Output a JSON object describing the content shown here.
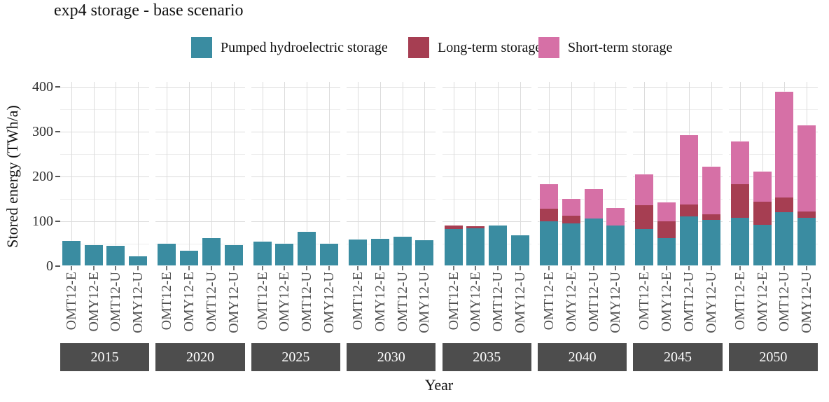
{
  "title": "exp4 storage - base scenario",
  "y_axis": {
    "label": "Stored energy (TWh/a)"
  },
  "x_axis": {
    "label": "Year"
  },
  "legend": {
    "items": [
      {
        "label": "Pumped hydroelectric storage",
        "color": "#3A8CA1"
      },
      {
        "label": "Long-term storage",
        "color": "#A63E52"
      },
      {
        "label": "Short-term storage",
        "color": "#D670A6"
      }
    ]
  },
  "chart_data": {
    "type": "bar",
    "stacked": true,
    "title": "exp4 storage - base scenario",
    "xlabel": "Year",
    "ylabel": "Stored energy (TWh/a)",
    "ylim": [
      0,
      400
    ],
    "yticks": [
      0,
      100,
      200,
      300,
      400
    ],
    "yminor": [
      50,
      150,
      250,
      350
    ],
    "grid": true,
    "legend_position": "top",
    "categories": [
      "OMT12-E",
      "OMY12-E",
      "OMT12-U",
      "OMY12-U"
    ],
    "series_bottom_to_top": [
      "Pumped hydroelectric storage",
      "Long-term storage",
      "Short-term storage"
    ],
    "colors": {
      "Pumped hydroelectric storage": "#3A8CA1",
      "Long-term storage": "#A63E52",
      "Short-term storage": "#D670A6"
    },
    "facets": [
      {
        "year": "2015",
        "pumped": [
          58,
          48,
          47,
          23
        ],
        "long": [
          0,
          0,
          0,
          0
        ],
        "short": [
          0,
          0,
          0,
          0
        ]
      },
      {
        "year": "2020",
        "pumped": [
          51,
          36,
          64,
          48
        ],
        "long": [
          0,
          0,
          0,
          0
        ],
        "short": [
          0,
          0,
          0,
          0
        ]
      },
      {
        "year": "2025",
        "pumped": [
          56,
          51,
          78,
          51
        ],
        "long": [
          0,
          0,
          0,
          0
        ],
        "short": [
          0,
          0,
          0,
          0
        ]
      },
      {
        "year": "2030",
        "pumped": [
          61,
          63,
          67,
          59
        ],
        "long": [
          0,
          0,
          0,
          0
        ],
        "short": [
          0,
          0,
          0,
          0
        ]
      },
      {
        "year": "2035",
        "pumped": [
          84,
          86,
          92,
          71
        ],
        "long": [
          8,
          4,
          0,
          0
        ],
        "short": [
          0,
          0,
          0,
          0
        ]
      },
      {
        "year": "2040",
        "pumped": [
          100,
          96,
          107,
          92
        ],
        "long": [
          29,
          18,
          0,
          0
        ],
        "short": [
          55,
          37,
          67,
          40
        ]
      },
      {
        "year": "2045",
        "pumped": [
          82,
          62,
          110,
          103
        ],
        "long": [
          55,
          39,
          28,
          12
        ],
        "short": [
          70,
          42,
          155,
          109
        ]
      },
      {
        "year": "2050",
        "pumped": [
          108,
          92,
          120,
          107
        ],
        "long": [
          76,
          52,
          33,
          15
        ],
        "short": [
          96,
          68,
          237,
          193
        ]
      }
    ]
  }
}
